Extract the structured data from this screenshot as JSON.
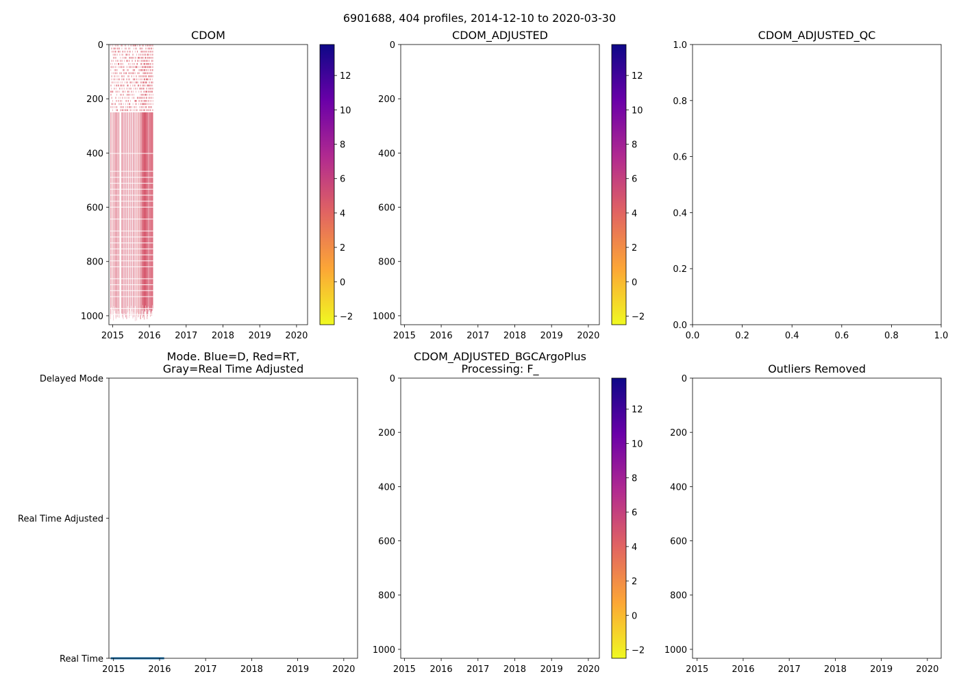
{
  "suptitle": "6901688, 404 profiles, 2014-12-10 to 2020-03-30",
  "colormap": {
    "name": "plasma_r",
    "stops": [
      "#f0f921",
      "#fca636",
      "#e16462",
      "#b12a90",
      "#6a00a8",
      "#0d0887"
    ]
  },
  "chart_data": [
    {
      "id": "cdom",
      "type": "heatmap",
      "title": "CDOM",
      "xlabel": "",
      "ylabel": "",
      "xlim": [
        2014.9,
        2020.3
      ],
      "ylim": [
        1033,
        0
      ],
      "xticks": [
        2015,
        2016,
        2017,
        2018,
        2019,
        2020
      ],
      "yticks": [
        0,
        200,
        400,
        600,
        800,
        1000
      ],
      "data_extent": {
        "start": 2014.94,
        "end": 2016.1,
        "upper_layer_end_depth": 250,
        "max_depth": 1020
      },
      "typical_value": 4.5,
      "colorbar": {
        "vmin": -2.5,
        "vmax": 13.8,
        "ticks": [
          -2,
          0,
          2,
          4,
          6,
          8,
          10,
          12
        ]
      }
    },
    {
      "id": "cdom_adjusted",
      "type": "heatmap",
      "title": "CDOM_ADJUSTED",
      "xlabel": "",
      "ylabel": "",
      "xlim": [
        2014.9,
        2020.3
      ],
      "ylim": [
        1033,
        0
      ],
      "xticks": [
        2015,
        2016,
        2017,
        2018,
        2019,
        2020
      ],
      "yticks": [
        0,
        200,
        400,
        600,
        800,
        1000
      ],
      "colorbar": {
        "vmin": -2.5,
        "vmax": 13.8,
        "ticks": [
          -2,
          0,
          2,
          4,
          6,
          8,
          10,
          12
        ]
      }
    },
    {
      "id": "cdom_adjusted_qc",
      "type": "scatter",
      "title": "CDOM_ADJUSTED_QC",
      "xlabel": "",
      "ylabel": "",
      "xlim": [
        0,
        1
      ],
      "ylim": [
        0,
        1
      ],
      "xticks": [
        "0.0",
        "0.2",
        "0.4",
        "0.6",
        "0.8",
        "1.0"
      ],
      "yticks": [
        "0.0",
        "0.2",
        "0.4",
        "0.6",
        "0.8",
        "1.0"
      ]
    },
    {
      "id": "mode",
      "type": "line",
      "title": "Mode. Blue=D, Red=RT,",
      "title2": "Gray=Real Time Adjusted",
      "xlabel": "",
      "ylabel": "",
      "xlim": [
        2014.9,
        2020.3
      ],
      "ylim": [
        0,
        2
      ],
      "xticks": [
        2015,
        2016,
        2017,
        2018,
        2019,
        2020
      ],
      "ytick_labels": [
        {
          "value": 2,
          "label": "Delayed Mode"
        },
        {
          "value": 1,
          "label": "Real Time Adjusted"
        },
        {
          "value": 0,
          "label": "Real Time"
        }
      ],
      "series": [
        {
          "name": "Real Time",
          "color": "#1f77b4",
          "x": [
            2014.94,
            2016.1
          ],
          "y": [
            0,
            0
          ]
        }
      ]
    },
    {
      "id": "bgcargoplus",
      "type": "heatmap",
      "title": "CDOM_ADJUSTED_BGCArgoPlus",
      "title2": "Processing: F_",
      "xlabel": "",
      "ylabel": "",
      "xlim": [
        2014.9,
        2020.3
      ],
      "ylim": [
        1033,
        0
      ],
      "xticks": [
        2015,
        2016,
        2017,
        2018,
        2019,
        2020
      ],
      "yticks": [
        0,
        200,
        400,
        600,
        800,
        1000
      ],
      "colorbar": {
        "vmin": -2.5,
        "vmax": 13.8,
        "ticks": [
          -2,
          0,
          2,
          4,
          6,
          8,
          10,
          12
        ]
      }
    },
    {
      "id": "outliers",
      "type": "scatter",
      "title": "Outliers Removed",
      "xlabel": "",
      "ylabel": "",
      "xlim": [
        2014.9,
        2020.3
      ],
      "ylim": [
        1033,
        0
      ],
      "xticks": [
        2015,
        2016,
        2017,
        2018,
        2019,
        2020
      ],
      "yticks": [
        0,
        200,
        400,
        600,
        800,
        1000
      ]
    }
  ]
}
